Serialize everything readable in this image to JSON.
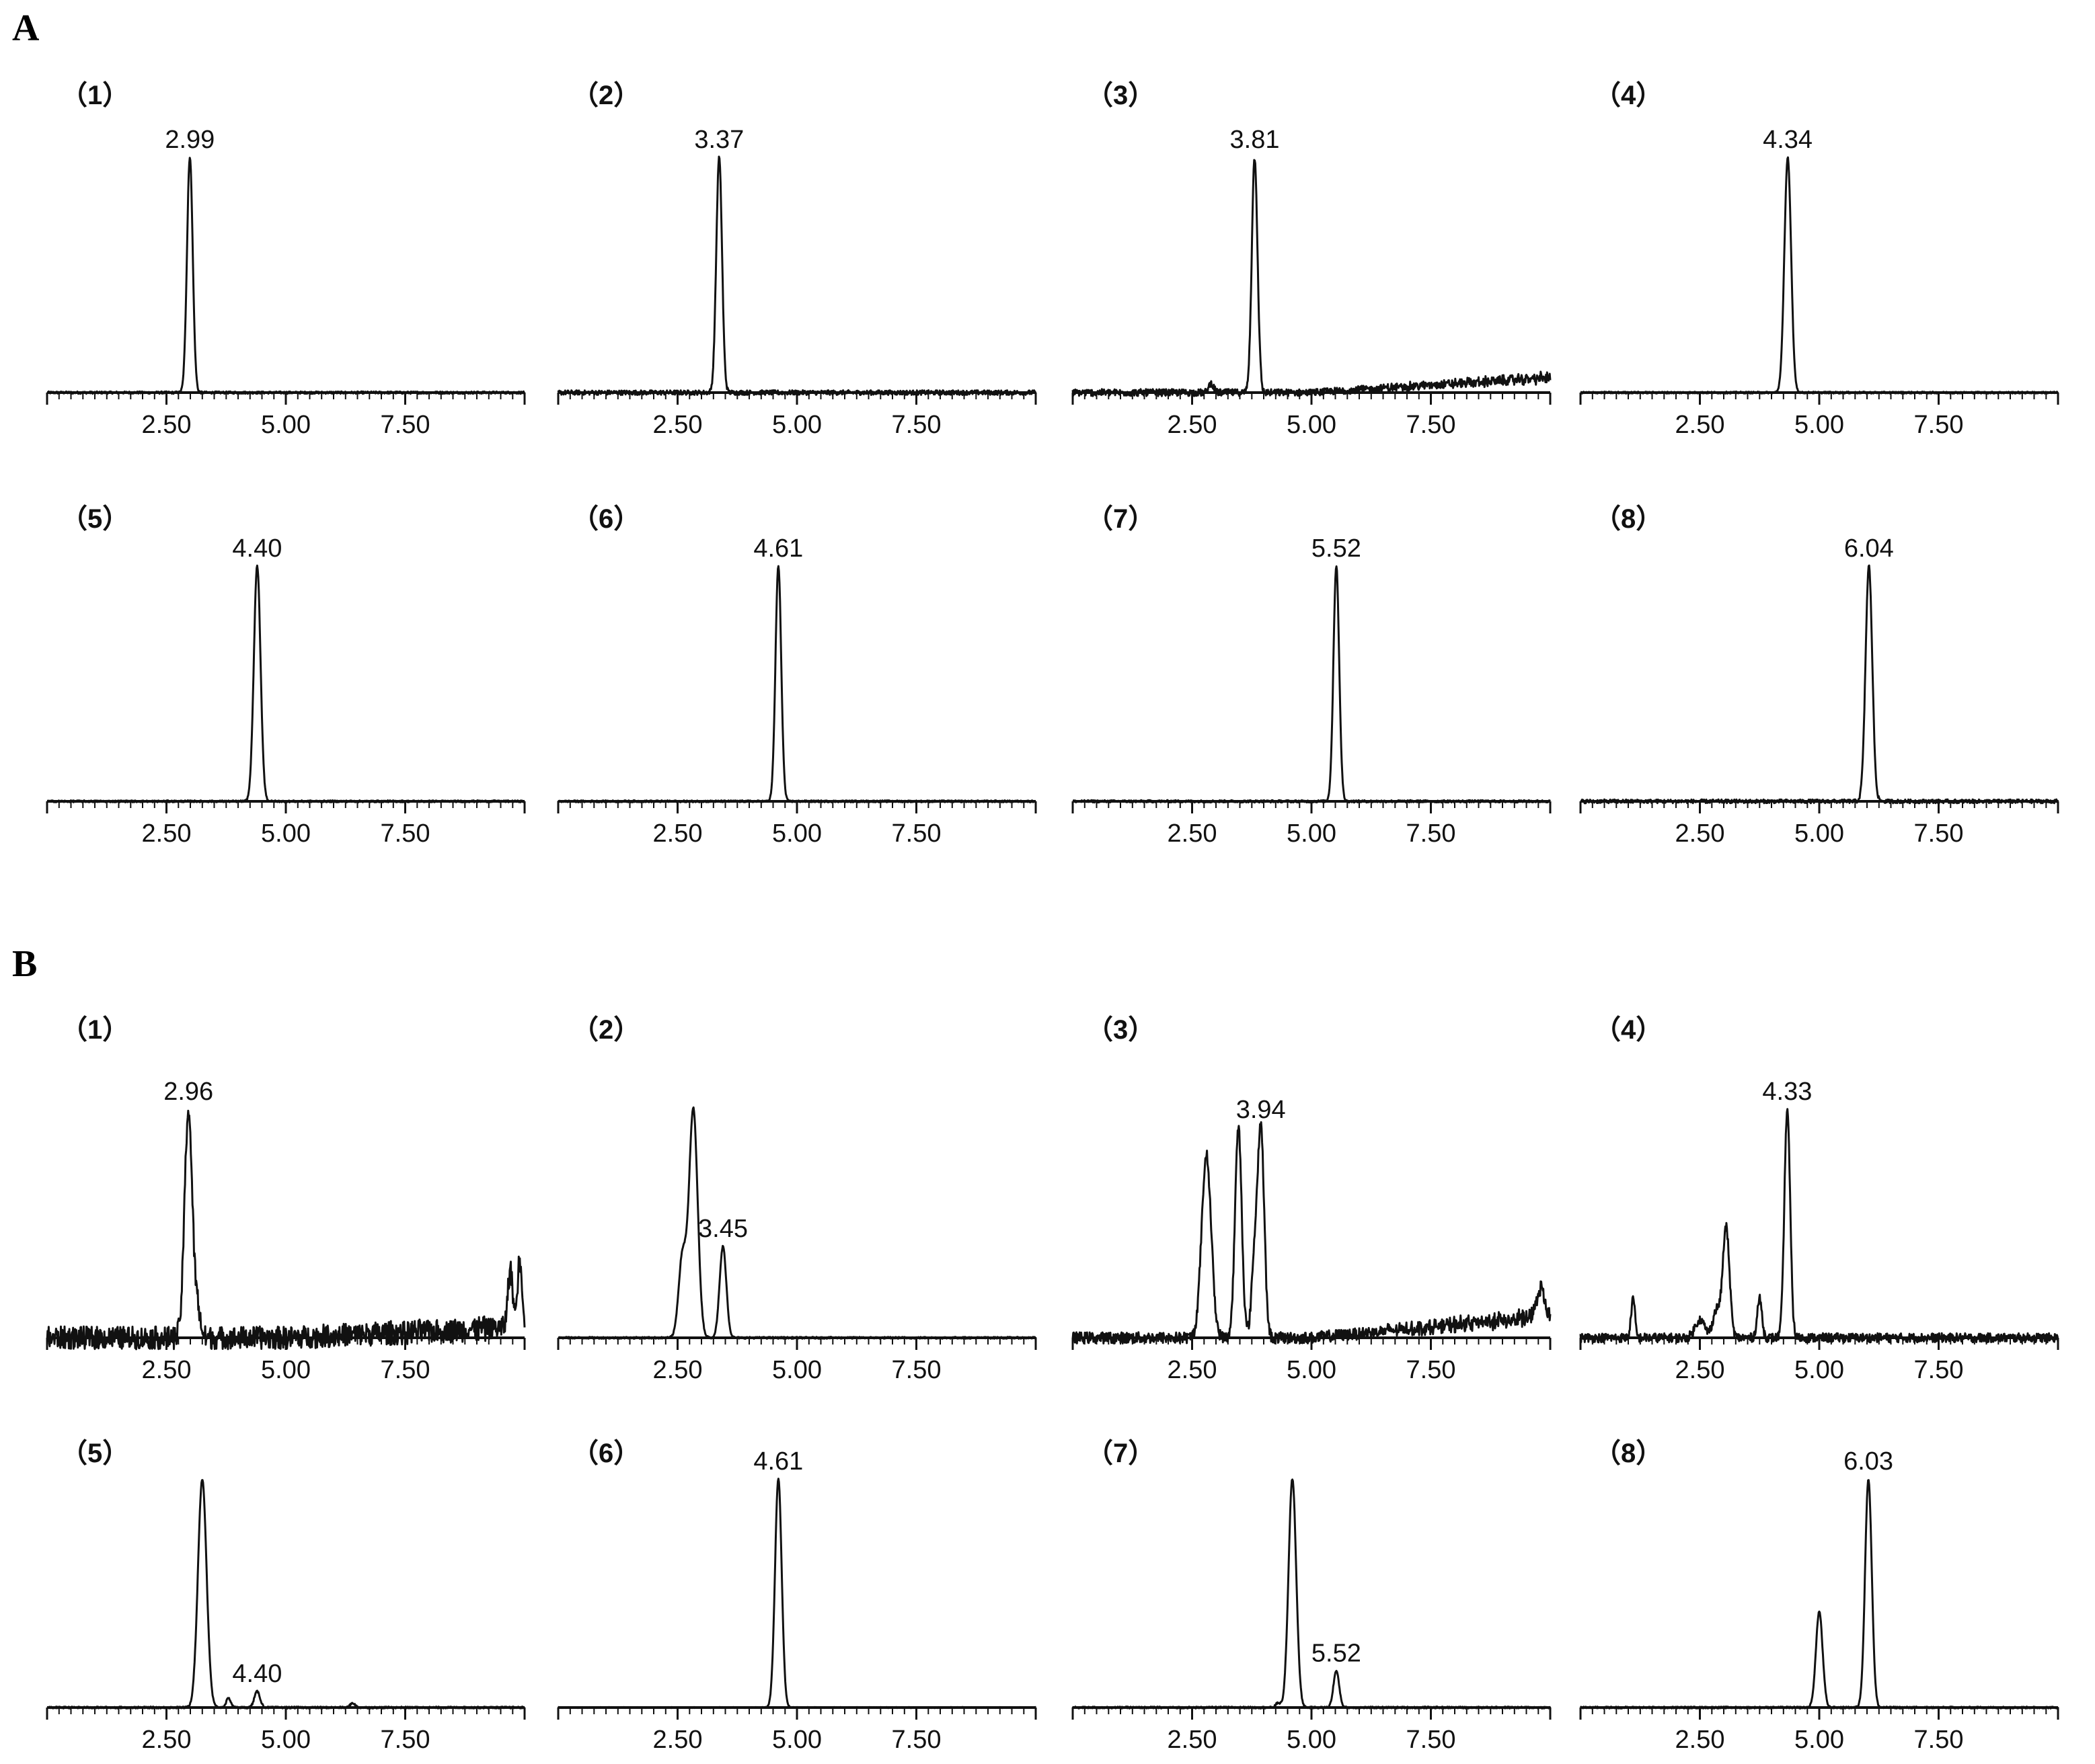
{
  "figure": {
    "sections": [
      {
        "label": "A"
      },
      {
        "label": "B"
      }
    ]
  },
  "chart_data": [
    {
      "type": "line",
      "section": "A",
      "panel_label": "（1）",
      "peak_label": "2.99",
      "xticks": [
        "2.50",
        "5.00",
        "7.50"
      ],
      "xlim": [
        0,
        10
      ],
      "peaks": [
        {
          "x": 2.99,
          "h": 1.0,
          "w": 0.06
        }
      ],
      "baseline_noise": 0.005
    },
    {
      "type": "line",
      "section": "A",
      "panel_label": "（2）",
      "peak_label": "3.37",
      "xticks": [
        "2.50",
        "5.00",
        "7.50"
      ],
      "xlim": [
        0,
        10
      ],
      "peaks": [
        {
          "x": 3.37,
          "h": 1.0,
          "w": 0.06
        }
      ],
      "baseline_noise": 0.01
    },
    {
      "type": "line",
      "section": "A",
      "panel_label": "（3）",
      "peak_label": "3.81",
      "xticks": [
        "2.50",
        "5.00",
        "7.50"
      ],
      "xlim": [
        0,
        10
      ],
      "peaks": [
        {
          "x": 3.81,
          "h": 1.0,
          "w": 0.06
        },
        {
          "x": 2.9,
          "h": 0.04,
          "w": 0.05
        }
      ],
      "baseline_noise": 0.015,
      "drift": 0.08
    },
    {
      "type": "line",
      "section": "A",
      "panel_label": "（4）",
      "peak_label": "4.34",
      "xticks": [
        "2.50",
        "5.00",
        "7.50"
      ],
      "xlim": [
        0,
        10
      ],
      "peaks": [
        {
          "x": 4.34,
          "h": 1.0,
          "w": 0.07
        }
      ],
      "baseline_noise": 0.004
    },
    {
      "type": "line",
      "section": "A",
      "panel_label": "（5）",
      "peak_label": "4.40",
      "xticks": [
        "2.50",
        "5.00",
        "7.50"
      ],
      "xlim": [
        0,
        10
      ],
      "peaks": [
        {
          "x": 4.4,
          "h": 1.0,
          "w": 0.07
        }
      ],
      "baseline_noise": 0.004
    },
    {
      "type": "line",
      "section": "A",
      "panel_label": "（6）",
      "peak_label": "4.61",
      "xticks": [
        "2.50",
        "5.00",
        "7.50"
      ],
      "xlim": [
        0,
        10
      ],
      "peaks": [
        {
          "x": 4.61,
          "h": 1.0,
          "w": 0.06
        }
      ],
      "baseline_noise": 0.004
    },
    {
      "type": "line",
      "section": "A",
      "panel_label": "（7）",
      "peak_label": "5.52",
      "xticks": [
        "2.50",
        "5.00",
        "7.50"
      ],
      "xlim": [
        0,
        10
      ],
      "peaks": [
        {
          "x": 5.52,
          "h": 1.0,
          "w": 0.06
        }
      ],
      "baseline_noise": 0.005
    },
    {
      "type": "line",
      "section": "A",
      "panel_label": "（8）",
      "peak_label": "6.04",
      "xticks": [
        "2.50",
        "5.00",
        "7.50"
      ],
      "xlim": [
        0,
        10
      ],
      "peaks": [
        {
          "x": 6.04,
          "h": 1.0,
          "w": 0.07
        }
      ],
      "baseline_noise": 0.008
    },
    {
      "type": "line",
      "section": "B",
      "panel_label": "（1）",
      "peak_label": "2.96",
      "xticks": [
        "2.50",
        "5.00",
        "7.50"
      ],
      "xlim": [
        0,
        10
      ],
      "peaks": [
        {
          "x": 2.96,
          "h": 1.0,
          "w": 0.08
        },
        {
          "x": 3.15,
          "h": 0.12,
          "w": 0.06
        },
        {
          "x": 9.7,
          "h": 0.25,
          "w": 0.05
        },
        {
          "x": 9.9,
          "h": 0.3,
          "w": 0.05
        }
      ],
      "baseline_noise": 0.05,
      "drift": 0.06
    },
    {
      "type": "line",
      "section": "B",
      "panel_label": "（2）",
      "peak_label": "3.45",
      "xticks": [
        "2.50",
        "5.00",
        "7.50"
      ],
      "xlim": [
        0,
        10
      ],
      "peaks": [
        {
          "x": 2.83,
          "h": 1.0,
          "w": 0.09
        },
        {
          "x": 2.6,
          "h": 0.35,
          "w": 0.08
        },
        {
          "x": 3.45,
          "h": 0.4,
          "w": 0.07
        }
      ],
      "baseline_noise": 0.004
    },
    {
      "type": "line",
      "section": "B",
      "panel_label": "（3）",
      "peak_label": "3.94",
      "xticks": [
        "2.50",
        "5.00",
        "7.50"
      ],
      "xlim": [
        0,
        10
      ],
      "peaks": [
        {
          "x": 2.8,
          "h": 0.8,
          "w": 0.1
        },
        {
          "x": 3.47,
          "h": 0.92,
          "w": 0.07
        },
        {
          "x": 3.8,
          "h": 0.3,
          "w": 0.06
        },
        {
          "x": 3.94,
          "h": 0.92,
          "w": 0.07
        },
        {
          "x": 9.8,
          "h": 0.12,
          "w": 0.08
        }
      ],
      "baseline_noise": 0.025,
      "drift": 0.12
    },
    {
      "type": "line",
      "section": "B",
      "panel_label": "（4）",
      "peak_label": "4.33",
      "xticks": [
        "2.50",
        "5.00",
        "7.50"
      ],
      "xlim": [
        0,
        10
      ],
      "peaks": [
        {
          "x": 4.33,
          "h": 1.0,
          "w": 0.06
        },
        {
          "x": 3.05,
          "h": 0.48,
          "w": 0.07
        },
        {
          "x": 2.85,
          "h": 0.12,
          "w": 0.08
        },
        {
          "x": 3.75,
          "h": 0.17,
          "w": 0.05
        },
        {
          "x": 1.1,
          "h": 0.17,
          "w": 0.04
        },
        {
          "x": 2.5,
          "h": 0.08,
          "w": 0.1
        }
      ],
      "baseline_noise": 0.02
    },
    {
      "type": "line",
      "section": "B",
      "panel_label": "（5）",
      "peak_label": "4.40",
      "xticks": [
        "2.50",
        "5.00",
        "7.50"
      ],
      "xlim": [
        0,
        10
      ],
      "peaks": [
        {
          "x": 3.25,
          "h": 1.0,
          "w": 0.09
        },
        {
          "x": 4.4,
          "h": 0.07,
          "w": 0.06
        },
        {
          "x": 3.8,
          "h": 0.04,
          "w": 0.05
        },
        {
          "x": 6.4,
          "h": 0.02,
          "w": 0.05
        }
      ],
      "baseline_noise": 0.004
    },
    {
      "type": "line",
      "section": "B",
      "panel_label": "（6）",
      "peak_label": "4.61",
      "xticks": [
        "2.50",
        "5.00",
        "7.50"
      ],
      "xlim": [
        0,
        10
      ],
      "peaks": [
        {
          "x": 4.61,
          "h": 1.0,
          "w": 0.07
        }
      ],
      "baseline_noise": 0.002
    },
    {
      "type": "line",
      "section": "B",
      "panel_label": "（7）",
      "peak_label": "5.52",
      "xticks": [
        "2.50",
        "5.00",
        "7.50"
      ],
      "xlim": [
        0,
        10
      ],
      "peaks": [
        {
          "x": 4.6,
          "h": 1.0,
          "w": 0.08
        },
        {
          "x": 5.52,
          "h": 0.16,
          "w": 0.06
        },
        {
          "x": 4.3,
          "h": 0.02,
          "w": 0.05
        }
      ],
      "baseline_noise": 0.004
    },
    {
      "type": "line",
      "section": "B",
      "panel_label": "（8）",
      "peak_label": "6.03",
      "xticks": [
        "2.50",
        "5.00",
        "7.50"
      ],
      "xlim": [
        0,
        10
      ],
      "peaks": [
        {
          "x": 6.03,
          "h": 1.0,
          "w": 0.07
        },
        {
          "x": 5.0,
          "h": 0.42,
          "w": 0.07
        }
      ],
      "baseline_noise": 0.004
    }
  ]
}
